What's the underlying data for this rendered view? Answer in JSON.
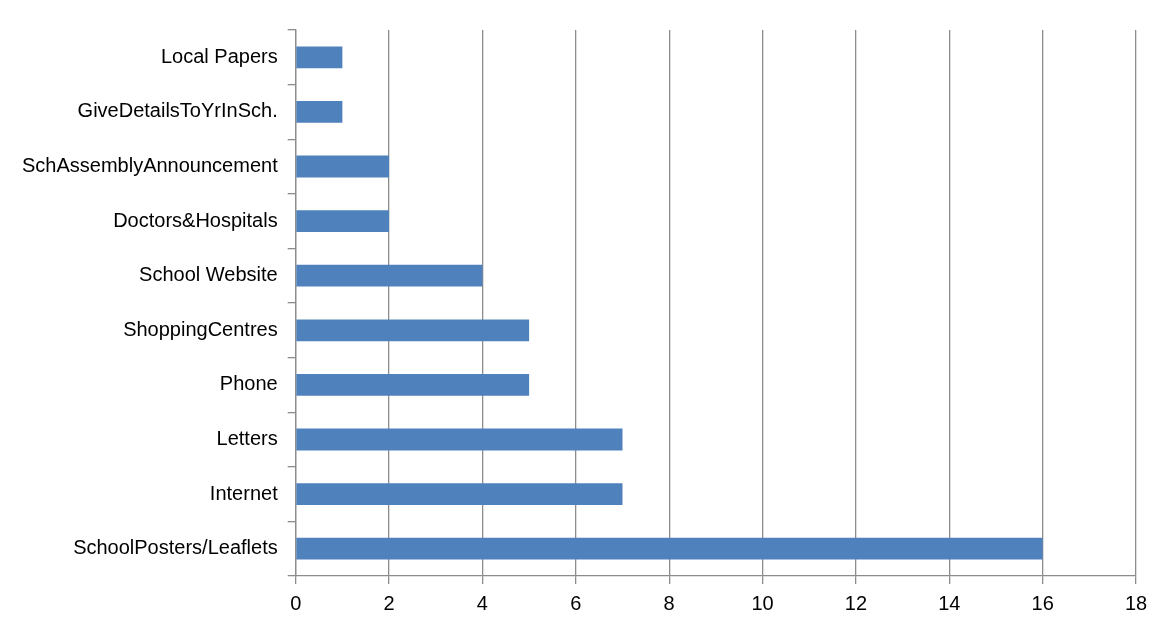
{
  "chart_data": {
    "type": "bar",
    "orientation": "horizontal",
    "categories": [
      "Local Papers",
      "GiveDetailsToYrInSch.",
      "SchAssemblyAnnouncement",
      "Doctors&Hospitals",
      "School Website",
      "ShoppingCentres",
      "Phone",
      "Letters",
      "Internet",
      "SchoolPosters/Leaflets"
    ],
    "values": [
      1,
      1,
      2,
      2,
      4,
      5,
      5,
      7,
      7,
      16
    ],
    "color": "#4f81bd",
    "xlim": [
      0,
      18
    ],
    "xticks": [
      0,
      2,
      4,
      6,
      8,
      10,
      12,
      14,
      16,
      18
    ],
    "grid": "x",
    "legend": false
  }
}
